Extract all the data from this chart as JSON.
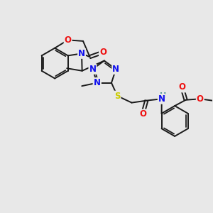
{
  "bg": "#e8e8e8",
  "bc": "#1a1a1a",
  "bw": 1.4,
  "fs": 8.5,
  "colors": {
    "N": "#1010ee",
    "O": "#ee1010",
    "S": "#cccc00",
    "H": "#4a9090",
    "C": "#1a1a1a"
  },
  "figsize": [
    3.0,
    3.0
  ],
  "dpi": 100
}
